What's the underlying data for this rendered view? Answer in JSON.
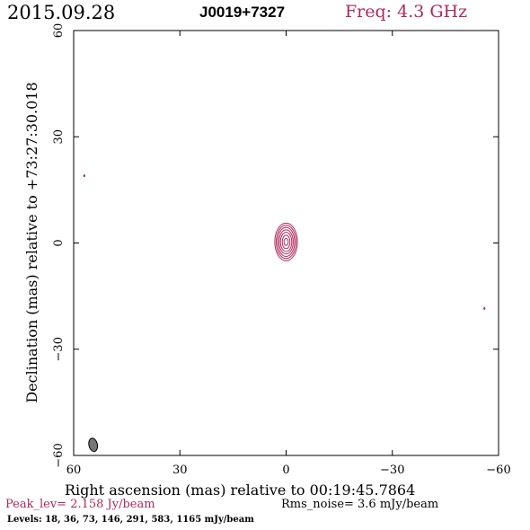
{
  "header": {
    "date": "2015.09.28",
    "source": "J0019+7327",
    "freq": "Freq: 4.3 GHz"
  },
  "footer": {
    "peak": "Peak_lev=  2.158 Jy/beam",
    "rms": "Rms_noise=  3.6 mJy/beam",
    "levels": "Levels:  18,  36,  73, 146, 291, 583, 1165 mJy/beam"
  },
  "colors": {
    "contour": "#b0285a",
    "text": "#000000",
    "beam": "#777777"
  },
  "chart_data": {
    "type": "contour",
    "xlabel": "Right ascension (mas) relative to 00:19:45.7864",
    "ylabel": "Declination (mas) relative to +73:27:30.018",
    "xlim": [
      60,
      -60
    ],
    "ylim": [
      -60,
      60
    ],
    "xticks": [
      60,
      30,
      0,
      -30,
      -60
    ],
    "yticks": [
      -60,
      -30,
      0,
      30,
      60
    ],
    "xtick_labels": [
      "60",
      "30",
      "0",
      "−30",
      "−60"
    ],
    "ytick_labels": [
      "−60",
      "−30",
      "0",
      "30",
      "60"
    ],
    "levels_mJy": [
      18,
      36,
      73,
      146,
      291,
      583,
      1165
    ],
    "core": {
      "x": 0.0,
      "y": 0.3,
      "levels": [
        {
          "rx": 3.2,
          "ry": 5.3
        },
        {
          "rx": 2.8,
          "ry": 4.7
        },
        {
          "rx": 2.4,
          "ry": 4.1
        },
        {
          "rx": 2.0,
          "ry": 3.4
        },
        {
          "rx": 1.6,
          "ry": 2.7
        },
        {
          "rx": 1.1,
          "ry": 1.9
        },
        {
          "rx": 0.6,
          "ry": 1.0
        }
      ]
    },
    "noise_features": [
      {
        "x": 57.0,
        "y": 19.0
      },
      {
        "x": -56.0,
        "y": -18.5
      }
    ],
    "beam": {
      "x": 54.5,
      "y": -57.0,
      "rx": 1.2,
      "ry": 1.9
    }
  }
}
